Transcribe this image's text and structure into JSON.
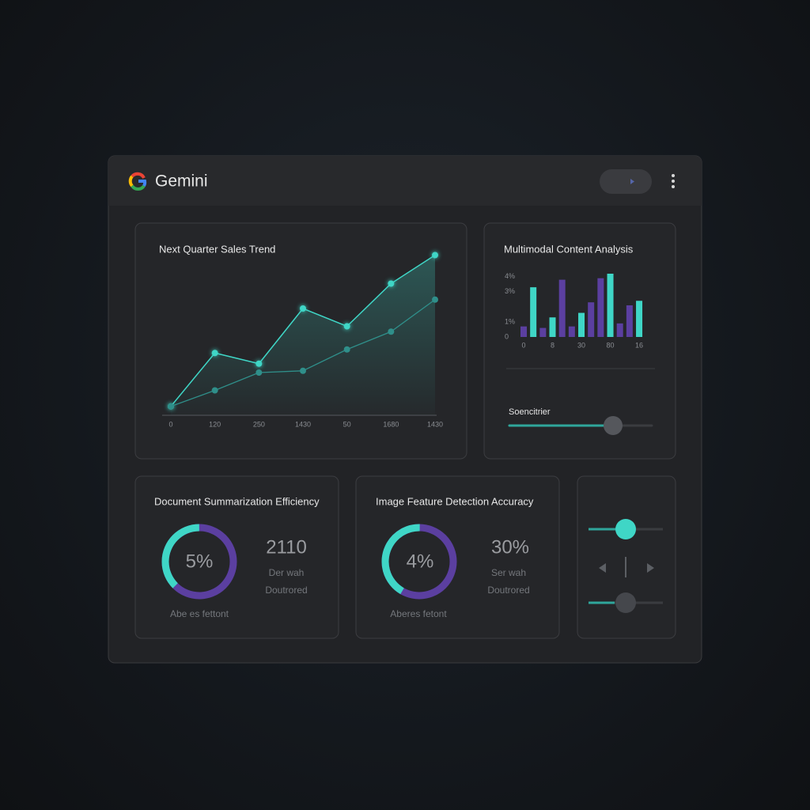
{
  "header": {
    "title": "Gemini"
  },
  "chart_data": [
    {
      "type": "line",
      "title": "Next Quarter Sales Trend",
      "categories": [
        "0",
        "120",
        "250",
        "1430",
        "50",
        "1680",
        "1430"
      ],
      "series": [
        {
          "color": "#3fd6c6",
          "values": [
            5,
            35,
            29,
            60,
            50,
            74,
            90
          ]
        },
        {
          "color": "#2f8f8a",
          "values": [
            5,
            14,
            24,
            25,
            37,
            47,
            65
          ]
        }
      ],
      "ylim": [
        0,
        100
      ]
    },
    {
      "type": "bar",
      "title": "Multimodal Content Analysis",
      "categories": [
        "0",
        null,
        null,
        "8",
        null,
        null,
        "30",
        null,
        null,
        "80",
        null,
        null,
        "16"
      ],
      "series": [
        {
          "color": "#5b3fa0",
          "values": [
            0.7,
            null,
            0.6,
            null,
            3.8,
            0.7,
            null,
            2.3,
            3.9,
            null,
            0.9,
            2.1,
            null
          ]
        },
        {
          "color": "#3fd6c6",
          "values": [
            null,
            3.3,
            null,
            1.3,
            null,
            null,
            1.6,
            null,
            null,
            4.2,
            null,
            null,
            2.4
          ]
        }
      ],
      "ylim": [
        0,
        4.2
      ],
      "yticks": [
        {
          "value": 4,
          "label": "4%"
        },
        {
          "value": 3,
          "label": "3%"
        },
        {
          "value": 1,
          "label": "1%"
        },
        0
      ]
    }
  ],
  "slider_label": "Soencitrier",
  "cards": [
    {
      "title": "Document Summarization Efficiency",
      "value": "5%",
      "stat": "2110",
      "line1": "Der wah",
      "line2": "Doutrored",
      "footer": "Abe es fettont"
    },
    {
      "title": "Image Feature Detection Accuracy",
      "value": "4%",
      "stat": "30%",
      "line1": "Ser wah",
      "line2": "Doutrored",
      "footer": "Aberes fetont"
    }
  ]
}
